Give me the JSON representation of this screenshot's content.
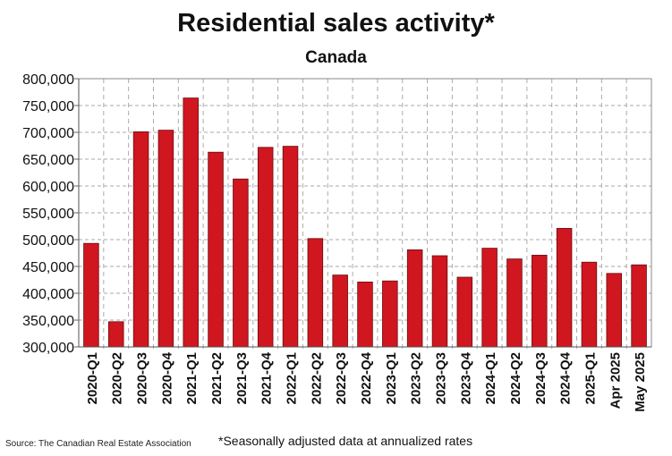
{
  "chart_data": {
    "type": "bar",
    "title": "Residential sales activity*",
    "subtitle": "Canada",
    "categories": [
      "2020-Q1",
      "2020-Q2",
      "2020-Q3",
      "2020-Q4",
      "2021-Q1",
      "2021-Q2",
      "2021-Q3",
      "2021-Q4",
      "2022-Q1",
      "2022-Q2",
      "2022-Q3",
      "2022-Q4",
      "2023-Q1",
      "2023-Q2",
      "2023-Q3",
      "2023-Q4",
      "2024-Q1",
      "2024-Q2",
      "2024-Q3",
      "2024-Q4",
      "2025-Q1",
      "Apr 2025",
      "May 2025"
    ],
    "values": [
      493000,
      347000,
      701000,
      704000,
      764000,
      663000,
      613000,
      672000,
      674000,
      502000,
      434000,
      421000,
      423000,
      481000,
      470000,
      430000,
      484000,
      464000,
      471000,
      521000,
      458000,
      437000,
      453000
    ],
    "ylim": [
      300000,
      800000
    ],
    "yticks": [
      "300,000",
      "350,000",
      "400,000",
      "450,000",
      "500,000",
      "550,000",
      "600,000",
      "650,000",
      "700,000",
      "750,000",
      "800,000"
    ],
    "grid": true,
    "bar_color": "#d0161f",
    "source": "Source: The Canadian Real Estate Association",
    "note": "*Seasonally adjusted data at annualized rates"
  }
}
